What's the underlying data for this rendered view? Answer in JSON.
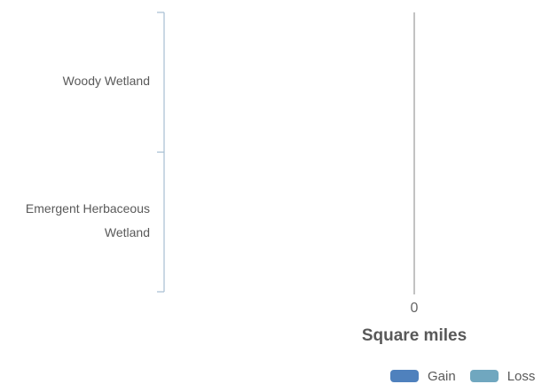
{
  "chart_data": {
    "type": "bar",
    "orientation": "horizontal",
    "categories": [
      "Woody Wetland",
      "Emergent Herbaceous Wetland"
    ],
    "category_lines": [
      [
        "Woody Wetland"
      ],
      [
        "Emergent Herbaceous",
        "Wetland"
      ]
    ],
    "series": [
      {
        "name": "Gain",
        "values": [
          0,
          0
        ]
      },
      {
        "name": "Loss",
        "values": [
          0,
          0
        ]
      }
    ],
    "xlabel": "Square miles",
    "x_ticks": [
      0
    ],
    "x_tick_labels": [
      "0"
    ],
    "xlim": [
      -1,
      1
    ],
    "grid": false,
    "legend_position": "bottom-right",
    "colors": {
      "Gain": "#4f81bd",
      "Loss": "#70a7bf",
      "axis": "#a6bfd3",
      "zero_line": "#999999"
    }
  }
}
